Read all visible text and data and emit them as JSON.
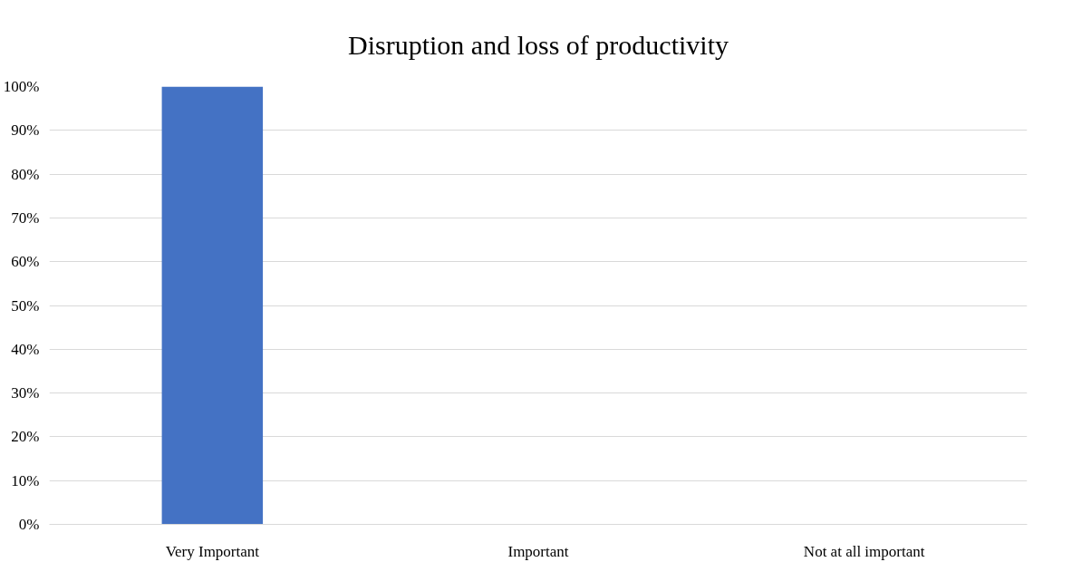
{
  "chart_data": {
    "type": "bar",
    "title": "Disruption and loss of productivity",
    "categories": [
      "Very Important",
      "Important",
      "Not at all important"
    ],
    "values": [
      100,
      0,
      0
    ],
    "color": "#4472c4",
    "ylim": [
      0,
      100
    ],
    "yticks": [
      {
        "value": 0,
        "label": "0%"
      },
      {
        "value": 10,
        "label": "10%"
      },
      {
        "value": 20,
        "label": "20%"
      },
      {
        "value": 30,
        "label": "30%"
      },
      {
        "value": 40,
        "label": "40%"
      },
      {
        "value": 50,
        "label": "50%"
      },
      {
        "value": 60,
        "label": "60%"
      },
      {
        "value": 70,
        "label": "70%"
      },
      {
        "value": 80,
        "label": "80%"
      },
      {
        "value": 90,
        "label": "90%"
      },
      {
        "value": 100,
        "label": "100%"
      }
    ],
    "grid": "y"
  }
}
